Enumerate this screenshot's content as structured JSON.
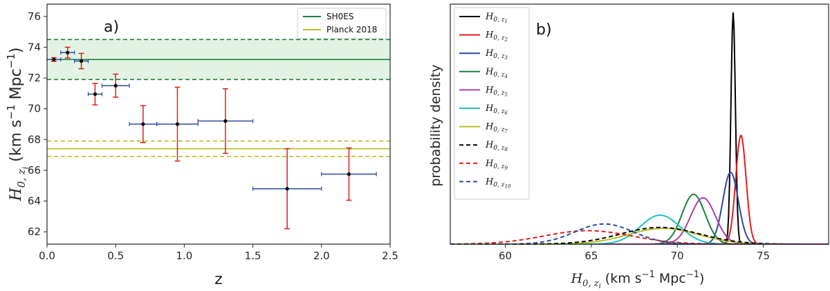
{
  "chart_data": [
    {
      "type": "scatter",
      "panel_label": "a)",
      "xlabel": "z",
      "ylabel_main": "H",
      "ylabel_sub": "0, z",
      "ylabel_subsub": "i",
      "ylabel_units_pre": " (km s",
      "ylabel_exp1": "−1",
      "ylabel_units_mid": " Mpc",
      "ylabel_exp2": "−1",
      "ylabel_units_post": ")",
      "xlim": [
        0.0,
        2.5
      ],
      "ylim": [
        61.2,
        76.8
      ],
      "xticks": [
        "0.0",
        "0.5",
        "1.0",
        "1.5",
        "2.0",
        "2.5"
      ],
      "xtick_values": [
        0.0,
        0.5,
        1.0,
        1.5,
        2.0,
        2.5
      ],
      "yticks": [
        "62",
        "64",
        "66",
        "68",
        "70",
        "72",
        "74",
        "76"
      ],
      "ytick_values": [
        62,
        64,
        66,
        68,
        70,
        72,
        74,
        76
      ],
      "points": [
        {
          "z": 0.05,
          "zerr": 0.05,
          "H": 73.2,
          "Herr": 0.12
        },
        {
          "z": 0.15,
          "zerr": 0.05,
          "H": 73.65,
          "Herr": 0.35
        },
        {
          "z": 0.25,
          "zerr": 0.05,
          "H": 73.1,
          "Herr": 0.5
        },
        {
          "z": 0.35,
          "zerr": 0.05,
          "H": 70.95,
          "Herr": 0.7
        },
        {
          "z": 0.5,
          "zerr": 0.1,
          "H": 71.5,
          "Herr": 0.75
        },
        {
          "z": 0.7,
          "zerr": 0.1,
          "H": 69.0,
          "Herr": 1.2
        },
        {
          "z": 0.95,
          "zerr": 0.15,
          "H": 69.0,
          "Herr": 2.4
        },
        {
          "z": 1.3,
          "zerr": 0.2,
          "H": 69.2,
          "Herr": 2.1
        },
        {
          "z": 1.75,
          "zerr": 0.25,
          "H": 64.8,
          "Herr": 2.6
        },
        {
          "z": 2.2,
          "zerr": 0.2,
          "H": 65.75,
          "Herr": 1.7
        }
      ],
      "bands": [
        {
          "name": "SH0ES",
          "center": 73.2,
          "low": 71.9,
          "high": 74.5,
          "color": "#1a7f3c",
          "fill": "#e3f3e3"
        },
        {
          "name": "Planck 2018",
          "center": 67.4,
          "low": 66.9,
          "high": 67.9,
          "color": "#bcbd22"
        }
      ],
      "legend": [
        "SH0ES",
        "Planck 2018"
      ],
      "legend_loc": "top-right"
    },
    {
      "type": "line",
      "panel_label": "b)",
      "ylabel": "probability density",
      "xlabel_main": "H",
      "xlabel_sub": "0, z",
      "xlabel_subsub": "i",
      "xlabel_units_pre": " (km s",
      "xlabel_exp1": "−1",
      "xlabel_units_mid": " Mpc",
      "xlabel_exp2": "−1",
      "xlabel_units_post": ")",
      "xlim": [
        56.8,
        78.8
      ],
      "xticks": [
        "60",
        "65",
        "70",
        "75"
      ],
      "xtick_values": [
        60,
        65,
        70,
        75
      ],
      "legend_loc": "top-left",
      "series": [
        {
          "name_main": "H",
          "name_sub": "0, z",
          "name_subsub": "1",
          "mean": 73.25,
          "sigma": 0.13,
          "peak": 1.0,
          "color": "#000000",
          "dash": false
        },
        {
          "name_main": "H",
          "name_sub": "0, z",
          "name_subsub": "2",
          "mean": 73.7,
          "sigma": 0.3,
          "peak": 0.47,
          "color": "#e41a1c",
          "dash": false
        },
        {
          "name_main": "H",
          "name_sub": "0, z",
          "name_subsub": "3",
          "mean": 73.1,
          "sigma": 0.45,
          "peak": 0.31,
          "color": "#2a4aa0",
          "dash": false
        },
        {
          "name_main": "H",
          "name_sub": "0, z",
          "name_subsub": "4",
          "mean": 70.95,
          "sigma": 0.67,
          "peak": 0.215,
          "color": "#1a7f3c",
          "dash": false
        },
        {
          "name_main": "H",
          "name_sub": "0, z",
          "name_subsub": "5",
          "mean": 71.5,
          "sigma": 0.72,
          "peak": 0.2,
          "color": "#a83ea8",
          "dash": false
        },
        {
          "name_main": "H",
          "name_sub": "0, z",
          "name_subsub": "6",
          "mean": 69.0,
          "sigma": 1.15,
          "peak": 0.125,
          "color": "#20c0c0",
          "dash": false
        },
        {
          "name_main": "H",
          "name_sub": "0, z",
          "name_subsub": "7",
          "mean": 69.2,
          "sigma": 2.05,
          "peak": 0.068,
          "color": "#bcbd22",
          "dash": false
        },
        {
          "name_main": "H",
          "name_sub": "0, z",
          "name_subsub": "8",
          "mean": 69.0,
          "sigma": 2.3,
          "peak": 0.072,
          "color": "#000000",
          "dash": true
        },
        {
          "name_main": "H",
          "name_sub": "0, z",
          "name_subsub": "9",
          "mean": 64.8,
          "sigma": 2.55,
          "peak": 0.058,
          "color": "#e41a1c",
          "dash": true
        },
        {
          "name_main": "H",
          "name_sub": "0, z",
          "name_subsub": "10",
          "mean": 65.75,
          "sigma": 1.7,
          "peak": 0.087,
          "color": "#2a4aa0",
          "dash": true
        }
      ]
    }
  ]
}
